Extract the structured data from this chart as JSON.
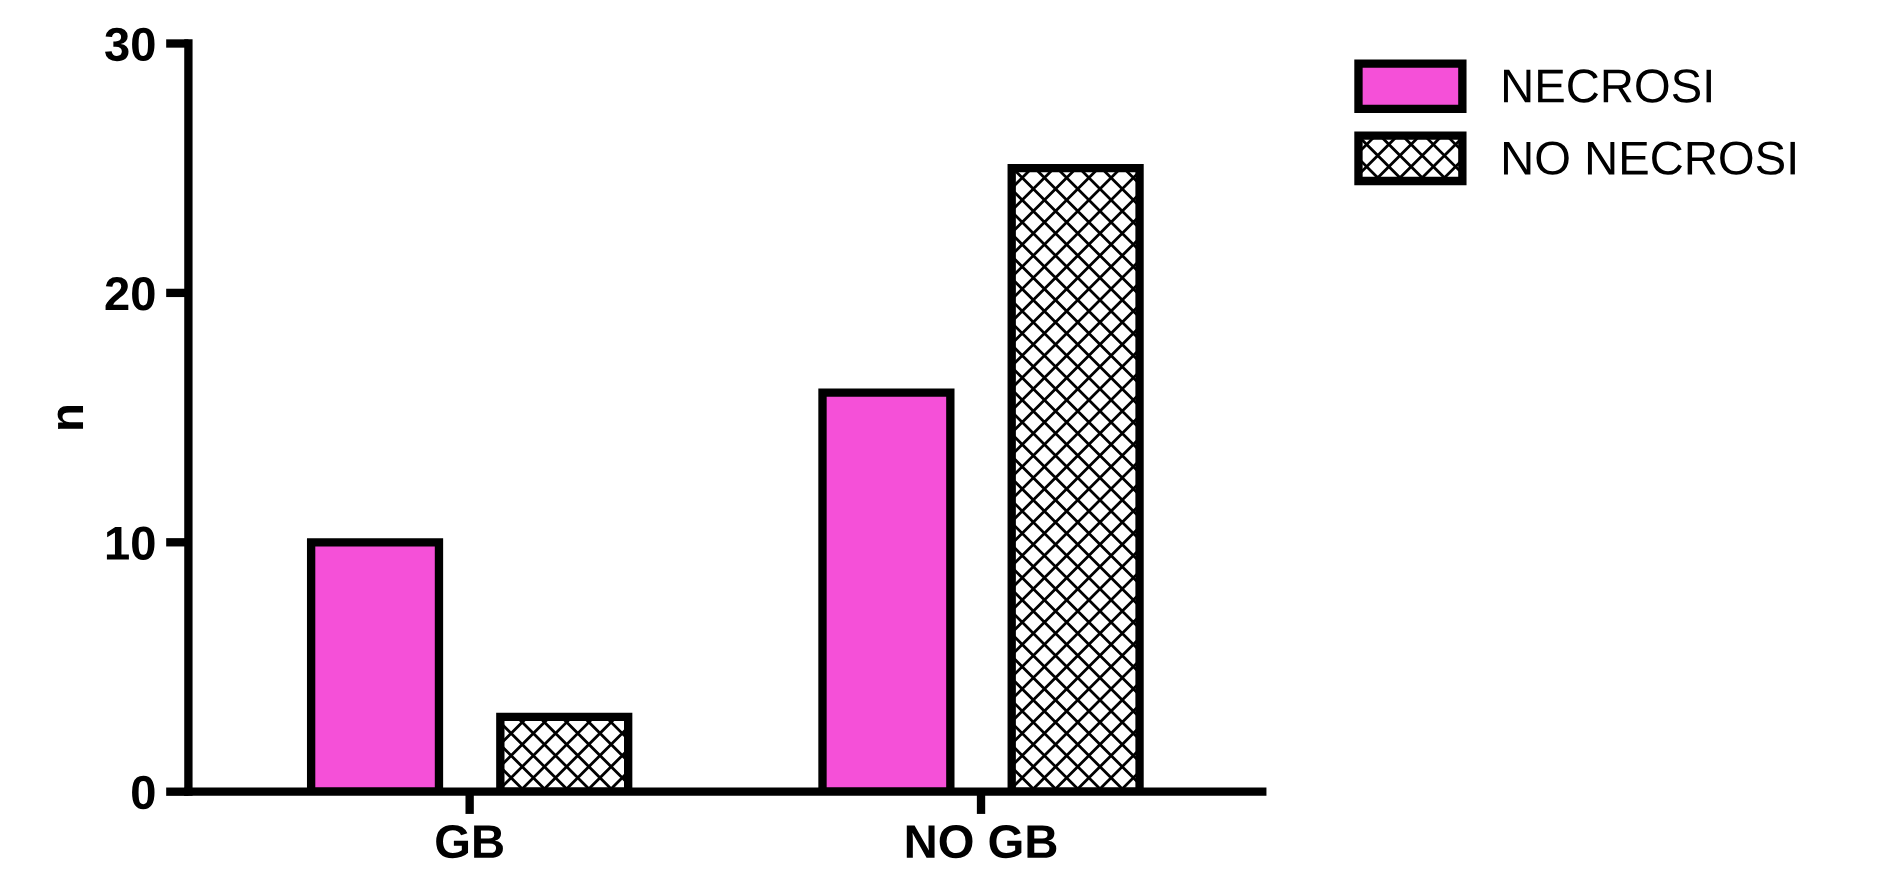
{
  "chart_data": {
    "type": "bar",
    "ylabel": "n",
    "categories": [
      "GB",
      "NO GB"
    ],
    "series": [
      {
        "name": "NECROSI",
        "color": "#f550d8",
        "values": [
          10,
          16
        ]
      },
      {
        "name": "NO NECROSI",
        "color": "#000000",
        "values": [
          3,
          25
        ]
      }
    ],
    "ylim": [
      0,
      30
    ],
    "yticks": [
      0,
      10,
      20,
      30
    ],
    "grid": false,
    "legend": "top right"
  }
}
